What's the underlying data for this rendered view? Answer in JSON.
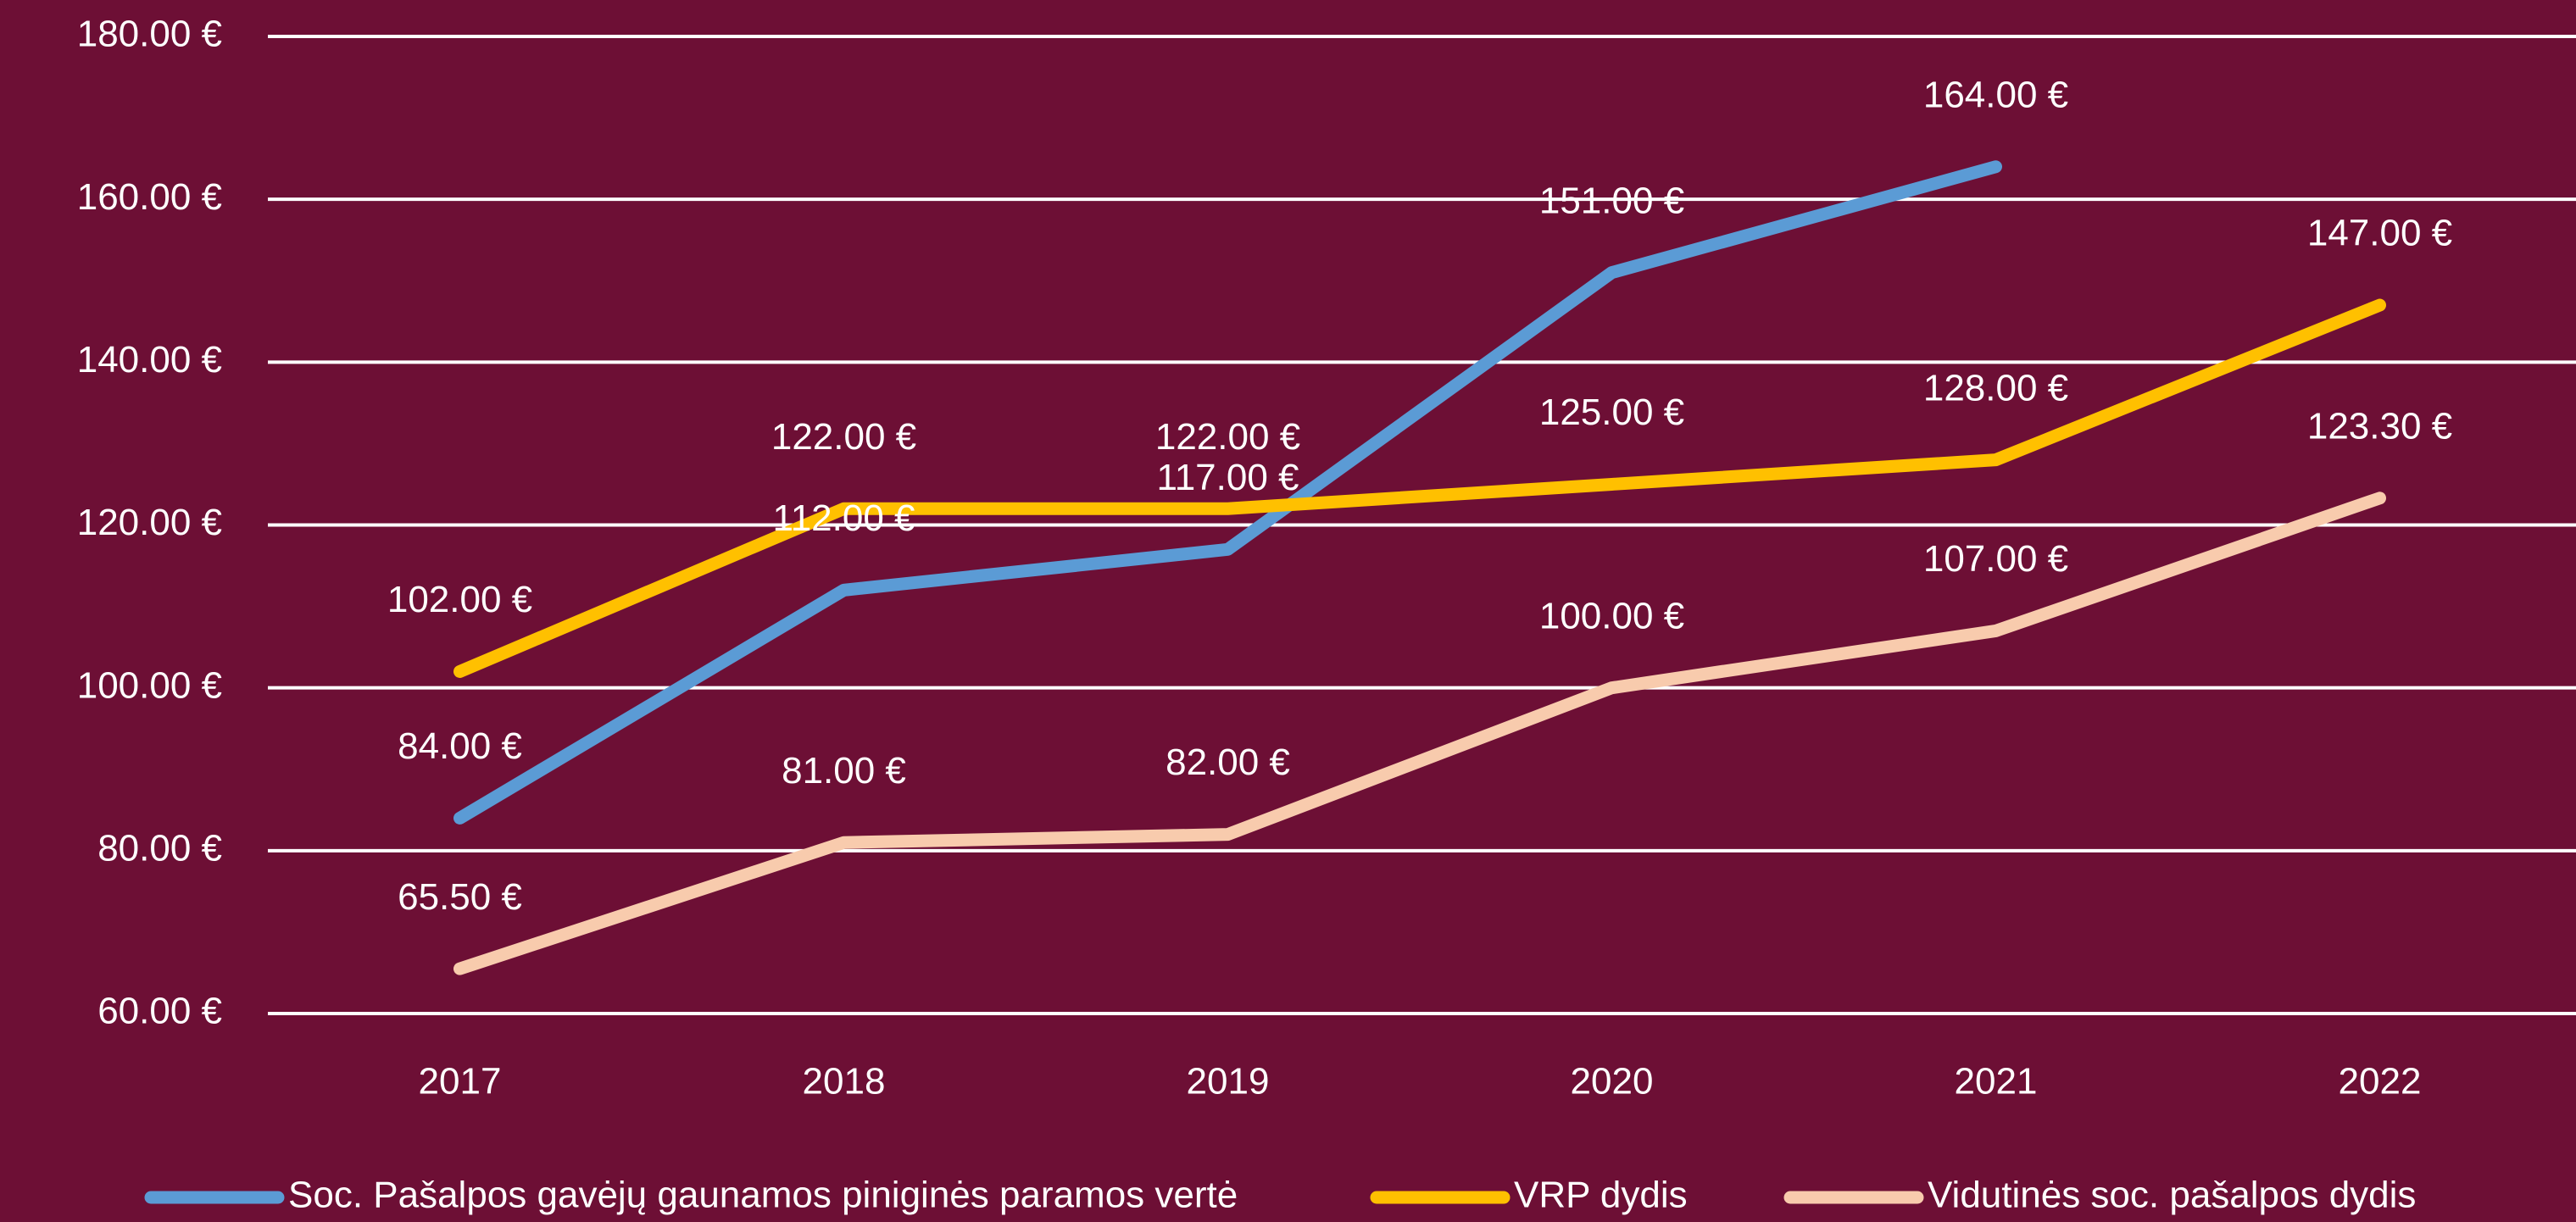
{
  "chart_data": {
    "type": "line",
    "categories": [
      "2017",
      "2018",
      "2019",
      "2020",
      "2021",
      "2022"
    ],
    "series": [
      {
        "name": "Soc. Pašalpos gavėjų gaunamos piniginės paramos vertė",
        "color": "#5b9bd5",
        "values": [
          84,
          112,
          117,
          151,
          164,
          null
        ],
        "value_labels": [
          "84.00 €",
          "112.00 €",
          "117.00 €",
          "151.00 €",
          "164.00 €",
          null
        ]
      },
      {
        "name": "VRP dydis",
        "color": "#ffc000",
        "values": [
          102,
          122,
          122,
          125,
          128,
          147
        ],
        "value_labels": [
          "102.00 €",
          "122.00 €",
          "122.00 €",
          "125.00 €",
          "128.00 €",
          "147.00 €"
        ]
      },
      {
        "name": "Vidutinės soc. pašalpos dydis",
        "color": "#f8cbad",
        "values": [
          65.5,
          81,
          82,
          100,
          107,
          123.3
        ],
        "value_labels": [
          "65.50 €",
          "81.00 €",
          "82.00 €",
          "100.00 €",
          "107.00 €",
          "123.30 €"
        ]
      }
    ],
    "ylim": [
      60,
      180
    ],
    "yticks": [
      {
        "value": 60,
        "label": "60.00 €"
      },
      {
        "value": 80,
        "label": "80.00 €"
      },
      {
        "value": 100,
        "label": "100.00 €"
      },
      {
        "value": 120,
        "label": "120.00 €"
      },
      {
        "value": 140,
        "label": "140.00 €"
      },
      {
        "value": 160,
        "label": "160.00 €"
      },
      {
        "value": 180,
        "label": "180.00 €"
      }
    ],
    "grid": true,
    "legend": "bottom",
    "background": "#6d0f35"
  }
}
